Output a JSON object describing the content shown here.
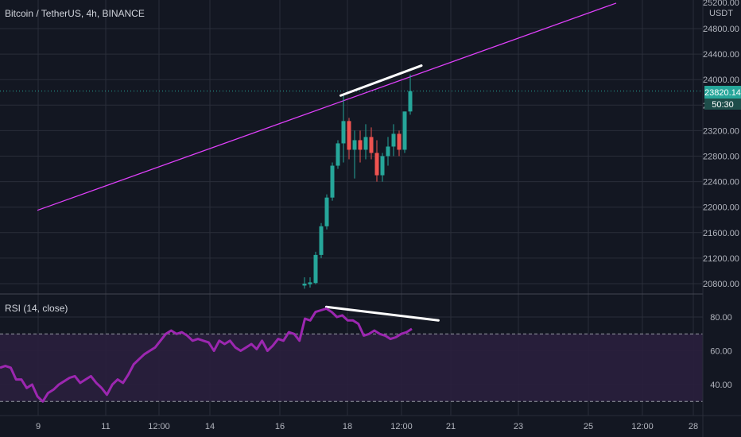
{
  "header": {
    "symbol_label": "Bitcoin / TetherUS, 4h, BINANCE",
    "currency": "USDT"
  },
  "rsi_panel": {
    "label": "RSI (14, close)"
  },
  "price_tags": {
    "last_price": "23820.14",
    "countdown": "50:30",
    "top_label": "25200.00"
  },
  "colors": {
    "background": "#131722",
    "grid": "#2a2e39",
    "up": "#26a69a",
    "down": "#ef5350",
    "trendline": "#e040fb",
    "rsi": "#9c27b0",
    "rsi_band": "#2a1f3d",
    "annotation": "#ffffff"
  },
  "chart_data": [
    {
      "type": "candlestick",
      "title": "Bitcoin / TetherUS, 4h, BINANCE",
      "y_axis_ticks": [
        20800,
        21200,
        21600,
        22000,
        22400,
        22800,
        23200,
        23600,
        24000,
        24400,
        24800
      ],
      "y_tick_labels": [
        "20800.00",
        "21200.00",
        "21600.00",
        "22000.00",
        "22400.00",
        "22800.00",
        "23200.00",
        "23600.00",
        "24000.00",
        "24400.00",
        "24800.00"
      ],
      "x_tick_labels": [
        "9",
        "11",
        "12:00",
        "14",
        "16",
        "18",
        "12:00",
        "21",
        "23",
        "25",
        "12:00",
        "28"
      ],
      "ylim": [
        20700,
        25200
      ],
      "candles": [
        {
          "o": 20770,
          "h": 20900,
          "l": 20720,
          "c": 20800
        },
        {
          "o": 20790,
          "h": 20900,
          "l": 20740,
          "c": 20820
        },
        {
          "o": 20810,
          "h": 21300,
          "l": 20790,
          "c": 21250
        },
        {
          "o": 21250,
          "h": 21750,
          "l": 21200,
          "c": 21700
        },
        {
          "o": 21700,
          "h": 22200,
          "l": 21650,
          "c": 22150
        },
        {
          "o": 22150,
          "h": 22700,
          "l": 22100,
          "c": 22650
        },
        {
          "o": 22650,
          "h": 23050,
          "l": 22600,
          "c": 23000
        },
        {
          "o": 23000,
          "h": 23780,
          "l": 22700,
          "c": 23350
        },
        {
          "o": 23350,
          "h": 23400,
          "l": 22750,
          "c": 22900
        },
        {
          "o": 22900,
          "h": 23200,
          "l": 22450,
          "c": 23050
        },
        {
          "o": 23050,
          "h": 23200,
          "l": 22700,
          "c": 22900
        },
        {
          "o": 22900,
          "h": 23300,
          "l": 22750,
          "c": 23100
        },
        {
          "o": 23100,
          "h": 23250,
          "l": 22750,
          "c": 22850
        },
        {
          "o": 22850,
          "h": 23050,
          "l": 22400,
          "c": 22500
        },
        {
          "o": 22500,
          "h": 22850,
          "l": 22400,
          "c": 22800
        },
        {
          "o": 22800,
          "h": 23100,
          "l": 22650,
          "c": 22950
        },
        {
          "o": 22950,
          "h": 23300,
          "l": 22800,
          "c": 23150
        },
        {
          "o": 23150,
          "h": 23200,
          "l": 22800,
          "c": 22900
        },
        {
          "o": 22900,
          "h": 23500,
          "l": 22850,
          "c": 23500
        },
        {
          "o": 23500,
          "h": 24080,
          "l": 23450,
          "c": 23820
        }
      ],
      "trendline": {
        "from": {
          "bar": -48,
          "price": 21950
        },
        "to": {
          "bar": 56,
          "price": 25200
        }
      },
      "annotations": [
        {
          "from": {
            "bar": 6.5,
            "price": 23750
          },
          "to": {
            "bar": 21,
            "price": 24220
          }
        }
      ]
    },
    {
      "type": "line",
      "title": "RSI (14, close)",
      "y_axis_ticks": [
        40,
        60,
        80
      ],
      "y_tick_labels": [
        "40.00",
        "60.00",
        "80.00"
      ],
      "ylim": [
        25,
        90
      ],
      "bands": [
        30,
        70
      ],
      "values": [
        50,
        51,
        50,
        43,
        43,
        38,
        40,
        33,
        30,
        35,
        37,
        40,
        42,
        44,
        45,
        41,
        43,
        45,
        41,
        38,
        34,
        40,
        43,
        41,
        46,
        52,
        55,
        58,
        60,
        62,
        66,
        70,
        72,
        70,
        71,
        69,
        66,
        67,
        66,
        65,
        60,
        66,
        64,
        66,
        62,
        60,
        62,
        64,
        61,
        66,
        60,
        63,
        67,
        66,
        71,
        70,
        66,
        79,
        78,
        83,
        84,
        85,
        83,
        80,
        81,
        78,
        78,
        76,
        69,
        70,
        72,
        70,
        69,
        67,
        68,
        70,
        71,
        73
      ],
      "annotations": [
        {
          "from": {
            "index": 61,
            "value": 86
          },
          "to": {
            "index": 79,
            "value": 78
          }
        }
      ]
    }
  ]
}
